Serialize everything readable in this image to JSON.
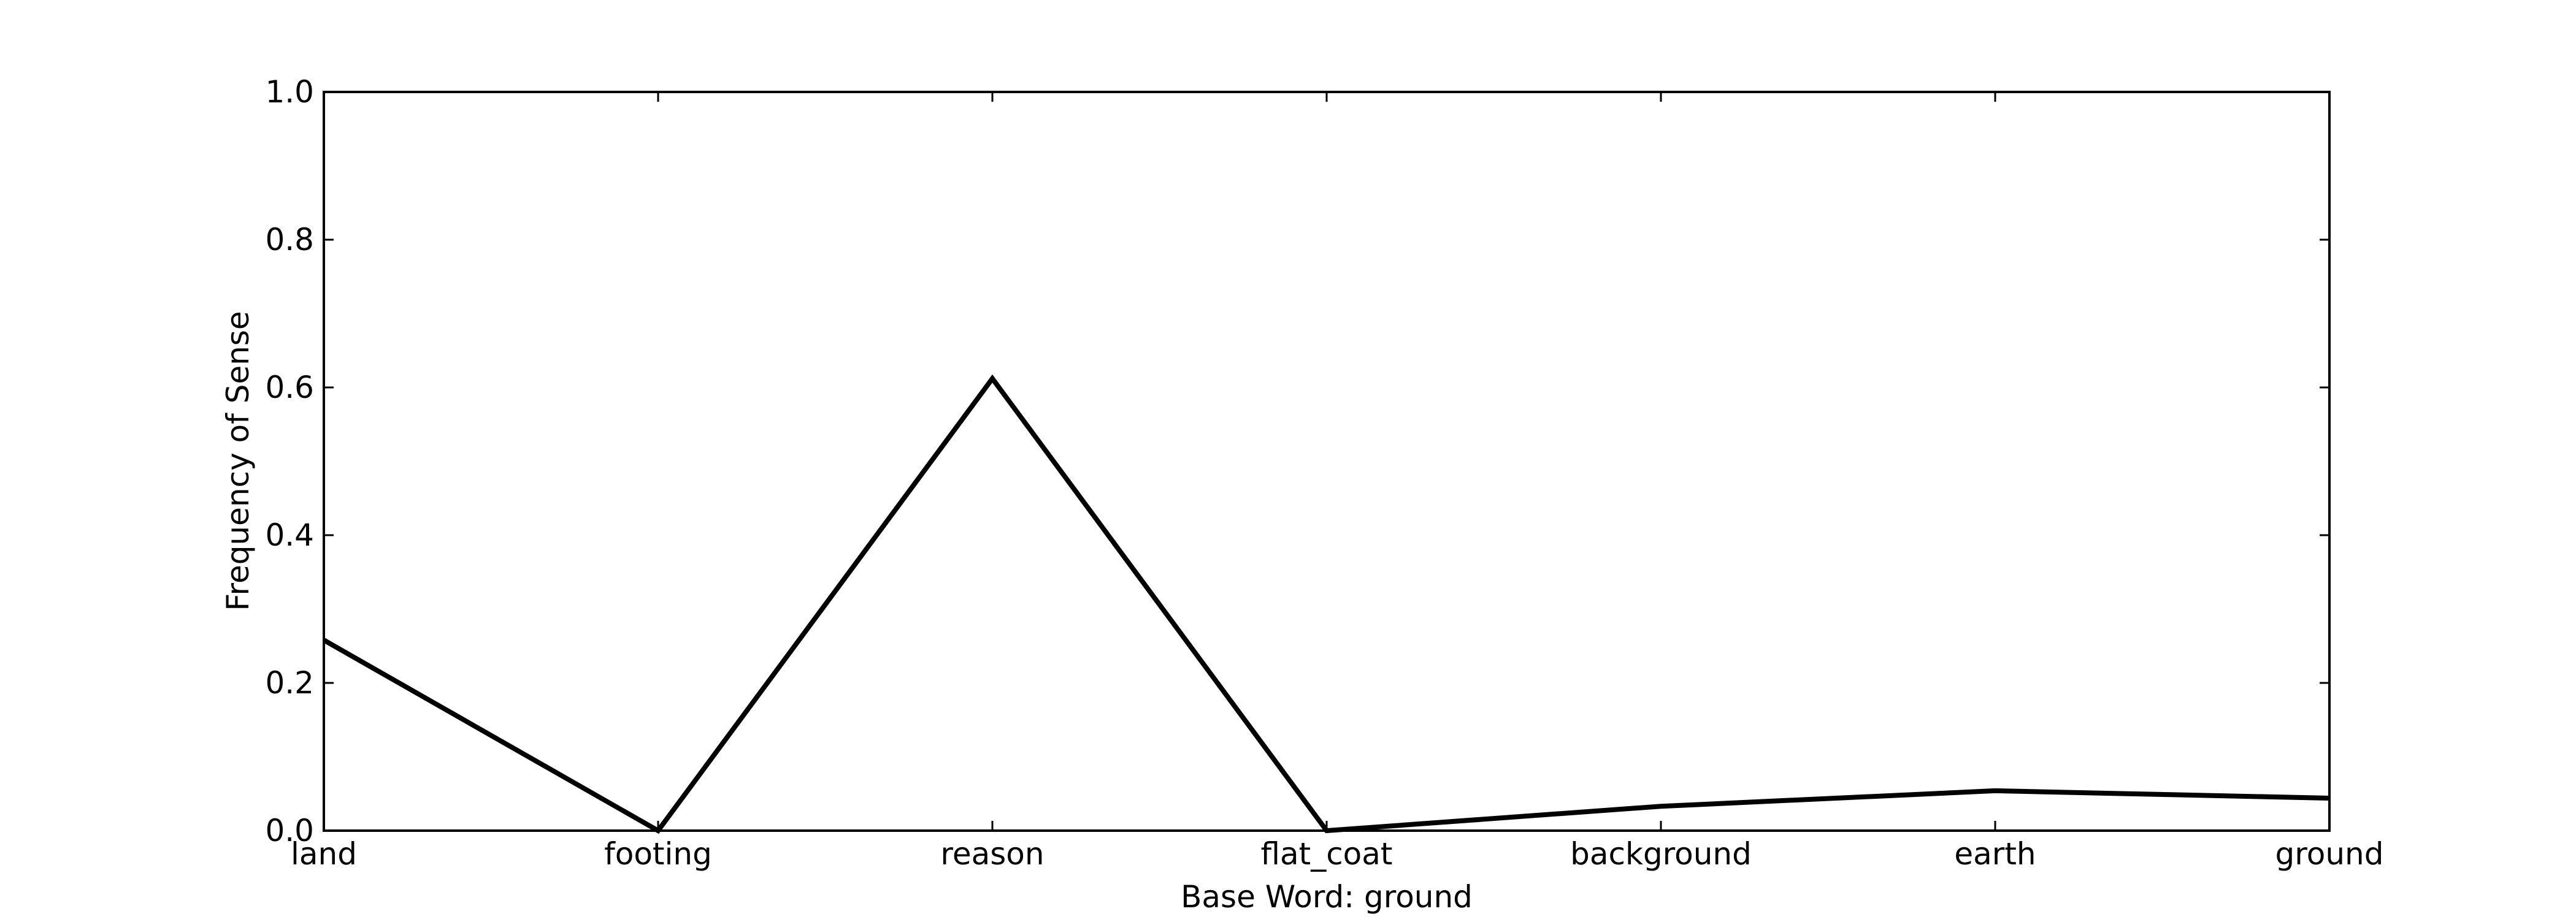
{
  "chart_data": {
    "type": "line",
    "categories": [
      "land",
      "footing",
      "reason",
      "flat_coat",
      "background",
      "earth",
      "ground"
    ],
    "values": [
      0.258,
      0.0,
      0.612,
      0.0,
      0.033,
      0.054,
      0.044
    ],
    "title": "",
    "xlabel": "Base Word: ground",
    "ylabel": "Frequency of Sense",
    "ylim": [
      0.0,
      1.0
    ],
    "yticks": [
      "0.0",
      "0.2",
      "0.4",
      "0.6",
      "0.8",
      "1.0"
    ],
    "grid": false,
    "legend": "none",
    "line_color": "#000000"
  }
}
